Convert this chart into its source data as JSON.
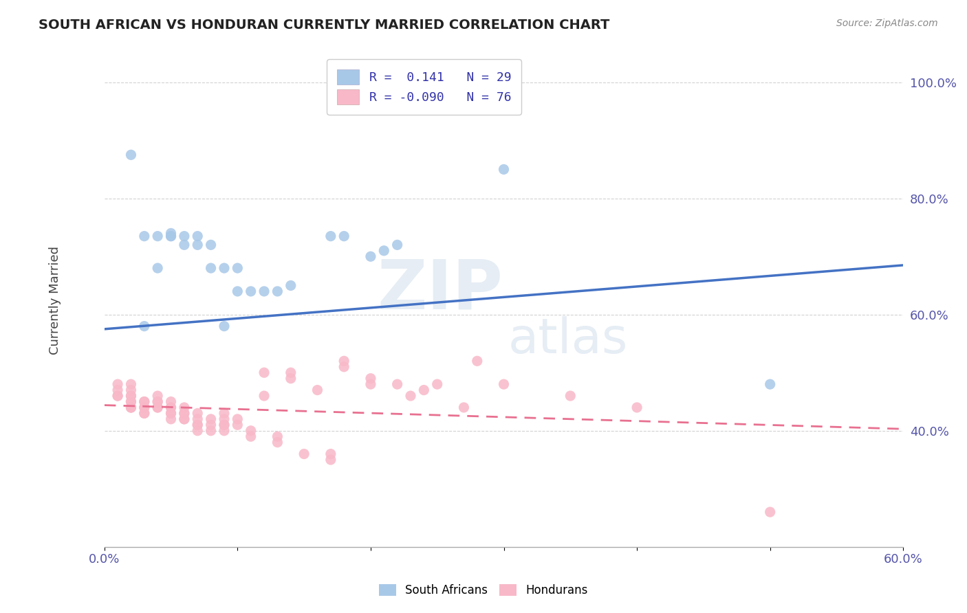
{
  "title": "SOUTH AFRICAN VS HONDURAN CURRENTLY MARRIED CORRELATION CHART",
  "source": "Source: ZipAtlas.com",
  "ylabel_label": "Currently Married",
  "xlim": [
    0.0,
    0.6
  ],
  "ylim": [
    0.2,
    1.05
  ],
  "xticks": [
    0.0,
    0.1,
    0.2,
    0.3,
    0.4,
    0.5,
    0.6
  ],
  "xticklabels": [
    "0.0%",
    "",
    "",
    "",
    "",
    "",
    "60.0%"
  ],
  "yticks": [
    0.4,
    0.6,
    0.8,
    1.0
  ],
  "yticklabels": [
    "40.0%",
    "60.0%",
    "80.0%",
    "100.0%"
  ],
  "sa_color": "#a8c8e8",
  "sa_color_line": "#4472c4",
  "hon_color": "#f8b8c8",
  "hon_color_line": "#e87090",
  "sa_R": 0.141,
  "sa_N": 29,
  "hon_R": -0.09,
  "hon_N": 76,
  "watermark_line1": "ZIP",
  "watermark_line2": "atlas",
  "background_color": "#ffffff",
  "grid_color": "#cccccc",
  "sa_x": [
    0.02,
    0.03,
    0.04,
    0.05,
    0.05,
    0.05,
    0.06,
    0.06,
    0.07,
    0.07,
    0.08,
    0.08,
    0.09,
    0.1,
    0.1,
    0.11,
    0.12,
    0.13,
    0.14,
    0.17,
    0.18,
    0.2,
    0.21,
    0.22,
    0.3,
    0.5,
    0.03,
    0.04,
    0.09
  ],
  "sa_y": [
    0.875,
    0.735,
    0.735,
    0.735,
    0.74,
    0.735,
    0.735,
    0.72,
    0.735,
    0.72,
    0.68,
    0.72,
    0.68,
    0.68,
    0.64,
    0.64,
    0.64,
    0.64,
    0.65,
    0.735,
    0.735,
    0.7,
    0.71,
    0.72,
    0.85,
    0.48,
    0.58,
    0.68,
    0.58
  ],
  "hon_x": [
    0.01,
    0.01,
    0.01,
    0.01,
    0.02,
    0.02,
    0.02,
    0.02,
    0.02,
    0.02,
    0.02,
    0.02,
    0.02,
    0.03,
    0.03,
    0.03,
    0.03,
    0.03,
    0.03,
    0.04,
    0.04,
    0.04,
    0.04,
    0.04,
    0.05,
    0.05,
    0.05,
    0.05,
    0.05,
    0.05,
    0.06,
    0.06,
    0.06,
    0.06,
    0.06,
    0.07,
    0.07,
    0.07,
    0.07,
    0.07,
    0.08,
    0.08,
    0.08,
    0.09,
    0.09,
    0.09,
    0.09,
    0.09,
    0.1,
    0.1,
    0.11,
    0.11,
    0.12,
    0.12,
    0.13,
    0.13,
    0.14,
    0.14,
    0.15,
    0.16,
    0.17,
    0.17,
    0.18,
    0.18,
    0.2,
    0.2,
    0.22,
    0.23,
    0.24,
    0.25,
    0.27,
    0.28,
    0.3,
    0.35,
    0.4,
    0.5
  ],
  "hon_y": [
    0.46,
    0.46,
    0.47,
    0.48,
    0.44,
    0.44,
    0.44,
    0.45,
    0.45,
    0.46,
    0.46,
    0.47,
    0.48,
    0.43,
    0.43,
    0.44,
    0.44,
    0.45,
    0.45,
    0.44,
    0.44,
    0.45,
    0.45,
    0.46,
    0.42,
    0.43,
    0.43,
    0.44,
    0.44,
    0.45,
    0.42,
    0.42,
    0.43,
    0.43,
    0.44,
    0.4,
    0.41,
    0.41,
    0.42,
    0.43,
    0.4,
    0.41,
    0.42,
    0.4,
    0.41,
    0.41,
    0.42,
    0.43,
    0.41,
    0.42,
    0.39,
    0.4,
    0.46,
    0.5,
    0.38,
    0.39,
    0.49,
    0.5,
    0.36,
    0.47,
    0.35,
    0.36,
    0.51,
    0.52,
    0.48,
    0.49,
    0.48,
    0.46,
    0.47,
    0.48,
    0.44,
    0.52,
    0.48,
    0.46,
    0.44,
    0.26
  ],
  "sa_trend_x": [
    0.0,
    0.6
  ],
  "sa_trend_y": [
    0.575,
    0.685
  ],
  "hon_trend_x": [
    0.0,
    0.6
  ],
  "hon_trend_y": [
    0.444,
    0.403
  ]
}
